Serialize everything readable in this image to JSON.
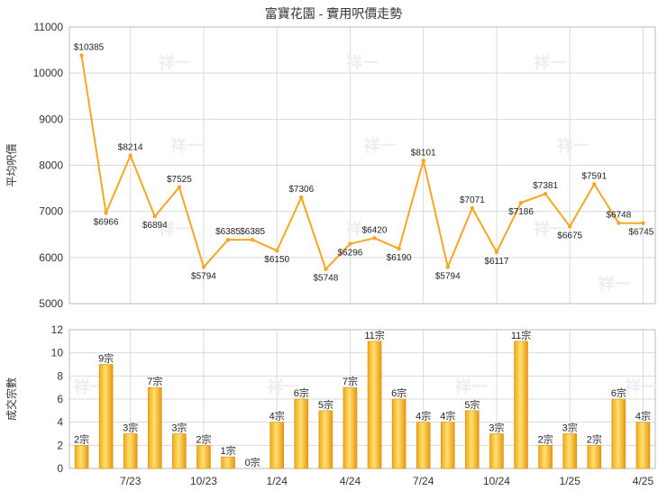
{
  "chart_data": [
    {
      "type": "line",
      "title": "富寶花園 - 實用呎價走勢",
      "ylabel": "平均呎價",
      "ylim": [
        5000,
        11000
      ],
      "yticks": [
        5000,
        6000,
        7000,
        8000,
        9000,
        10000,
        11000
      ],
      "grid": true,
      "value_prefix": "$",
      "series": [
        {
          "values": [
            10385,
            6966,
            8214,
            6894,
            7525,
            5794,
            6385,
            6385,
            6150,
            7306,
            5748,
            6296,
            6420,
            6190,
            8101,
            5794,
            7071,
            6117,
            7186,
            7381,
            6675,
            7591,
            6748,
            6745
          ],
          "color": "#f5a623"
        }
      ]
    },
    {
      "type": "bar",
      "ylabel": "成交宗數",
      "ylim": [
        0,
        12
      ],
      "yticks": [
        0,
        2,
        4,
        6,
        8,
        10,
        12
      ],
      "grid": true,
      "value_suffix": "宗",
      "xticks": [
        "7/23",
        "10/23",
        "1/24",
        "4/24",
        "7/24",
        "10/24",
        "1/25",
        "4/25"
      ],
      "series": [
        {
          "values": [
            2,
            9,
            3,
            7,
            3,
            2,
            1,
            0,
            4,
            6,
            5,
            7,
            11,
            6,
            4,
            4,
            5,
            3,
            11,
            2,
            3,
            2,
            6,
            4
          ]
        }
      ]
    }
  ],
  "watermark": "祥一"
}
